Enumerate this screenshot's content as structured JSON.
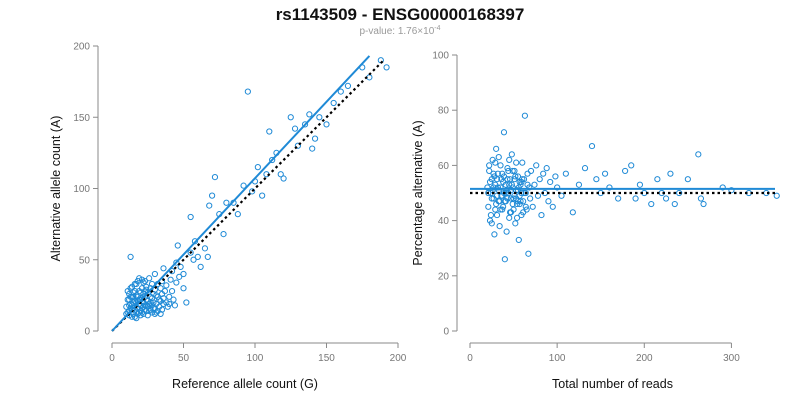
{
  "figure": {
    "title": "rs1143509 - ENSG00000168397",
    "pvalue_prefix": "p-value: 1.76×10",
    "pvalue_exponent": "-4"
  },
  "colors": {
    "points": "#1f8ad6",
    "fit_line": "#1f8ad6",
    "reference_line": "#000000",
    "axis": "#8a8a8a",
    "tick_text": "#777777"
  },
  "chart_data": [
    {
      "type": "scatter",
      "xlabel": "Reference allele count (G)",
      "ylabel": "Alternative allele count (A)",
      "xlim": [
        0,
        200
      ],
      "ylim": [
        0,
        200
      ],
      "xticks": [
        0,
        50,
        100,
        150,
        200
      ],
      "yticks": [
        0,
        50,
        100,
        150,
        200
      ],
      "grid": false,
      "fit_line": {
        "style": "solid",
        "x": [
          0,
          180
        ],
        "y": [
          0,
          193
        ]
      },
      "reference_line": {
        "style": "dotted",
        "x": [
          0,
          190
        ],
        "y": [
          0,
          190
        ]
      },
      "points": [
        [
          13,
          52
        ],
        [
          10,
          17
        ],
        [
          11,
          22
        ],
        [
          12,
          26
        ],
        [
          12,
          14
        ],
        [
          13,
          30
        ],
        [
          14,
          10
        ],
        [
          14,
          18
        ],
        [
          15,
          27
        ],
        [
          15,
          12
        ],
        [
          16,
          21
        ],
        [
          16,
          15
        ],
        [
          17,
          33
        ],
        [
          17,
          9
        ],
        [
          18,
          24
        ],
        [
          18,
          12
        ],
        [
          19,
          19
        ],
        [
          19,
          28
        ],
        [
          20,
          14
        ],
        [
          20,
          22
        ],
        [
          21,
          16
        ],
        [
          21,
          30
        ],
        [
          22,
          12
        ],
        [
          22,
          26
        ],
        [
          23,
          18
        ],
        [
          23,
          35
        ],
        [
          24,
          14
        ],
        [
          24,
          22
        ],
        [
          25,
          27
        ],
        [
          25,
          11
        ],
        [
          26,
          19
        ],
        [
          27,
          24
        ],
        [
          27,
          15
        ],
        [
          28,
          33
        ],
        [
          28,
          13
        ],
        [
          29,
          20
        ],
        [
          30,
          16
        ],
        [
          30,
          40
        ],
        [
          31,
          25
        ],
        [
          32,
          14
        ],
        [
          33,
          22
        ],
        [
          34,
          30
        ],
        [
          35,
          15
        ],
        [
          36,
          44
        ],
        [
          37,
          28
        ],
        [
          38,
          20
        ],
        [
          39,
          17
        ],
        [
          40,
          24
        ],
        [
          41,
          36
        ],
        [
          42,
          42
        ],
        [
          43,
          22
        ],
        [
          44,
          18
        ],
        [
          45,
          34
        ],
        [
          46,
          60
        ],
        [
          47,
          38
        ],
        [
          48,
          45
        ],
        [
          50,
          30
        ],
        [
          52,
          20
        ],
        [
          11,
          13
        ],
        [
          12,
          11
        ],
        [
          13,
          19
        ],
        [
          14,
          24
        ],
        [
          15,
          16
        ],
        [
          16,
          28
        ],
        [
          17,
          20
        ],
        [
          18,
          16
        ],
        [
          19,
          13
        ],
        [
          20,
          18
        ],
        [
          21,
          23
        ],
        [
          22,
          20
        ],
        [
          23,
          15
        ],
        [
          24,
          29
        ],
        [
          25,
          17
        ],
        [
          26,
          14
        ],
        [
          27,
          20
        ],
        [
          28,
          18
        ],
        [
          29,
          26
        ],
        [
          30,
          12
        ],
        [
          31,
          19
        ],
        [
          32,
          24
        ],
        [
          33,
          17
        ],
        [
          34,
          21
        ],
        [
          35,
          26
        ],
        [
          36,
          19
        ],
        [
          12,
          22
        ],
        [
          13,
          16
        ],
        [
          15,
          24
        ],
        [
          17,
          13
        ],
        [
          19,
          22
        ],
        [
          21,
          13
        ],
        [
          23,
          24
        ],
        [
          25,
          21
        ],
        [
          27,
          30
        ],
        [
          29,
          16
        ],
        [
          31,
          13
        ],
        [
          14,
          31
        ],
        [
          16,
          10
        ],
        [
          18,
          35
        ],
        [
          20,
          27
        ],
        [
          22,
          34
        ],
        [
          24,
          31
        ],
        [
          26,
          37
        ],
        [
          28,
          23
        ],
        [
          30,
          29
        ],
        [
          32,
          33
        ],
        [
          34,
          12
        ],
        [
          36,
          23
        ],
        [
          38,
          32
        ],
        [
          40,
          19
        ],
        [
          42,
          28
        ],
        [
          10,
          12
        ],
        [
          11,
          28
        ],
        [
          12,
          18
        ],
        [
          13,
          24
        ],
        [
          14,
          15
        ],
        [
          15,
          20
        ],
        [
          16,
          33
        ],
        [
          17,
          25
        ],
        [
          18,
          21
        ],
        [
          19,
          37
        ],
        [
          20,
          11
        ],
        [
          21,
          36
        ],
        [
          22,
          17
        ],
        [
          23,
          28
        ],
        [
          24,
          18
        ],
        [
          35,
          35
        ],
        [
          45,
          48
        ],
        [
          50,
          40
        ],
        [
          55,
          55
        ],
        [
          55,
          80
        ],
        [
          57,
          50
        ],
        [
          58,
          63
        ],
        [
          60,
          52
        ],
        [
          62,
          45
        ],
        [
          65,
          58
        ],
        [
          67,
          52
        ],
        [
          68,
          88
        ],
        [
          70,
          95
        ],
        [
          72,
          108
        ],
        [
          75,
          82
        ],
        [
          78,
          68
        ],
        [
          80,
          90
        ],
        [
          85,
          90
        ],
        [
          88,
          82
        ],
        [
          92,
          102
        ],
        [
          95,
          168
        ],
        [
          98,
          98
        ],
        [
          100,
          105
        ],
        [
          102,
          115
        ],
        [
          105,
          95
        ],
        [
          108,
          110
        ],
        [
          110,
          140
        ],
        [
          112,
          120
        ],
        [
          115,
          125
        ],
        [
          118,
          110
        ],
        [
          120,
          107
        ],
        [
          125,
          150
        ],
        [
          128,
          142
        ],
        [
          130,
          130
        ],
        [
          135,
          145
        ],
        [
          138,
          152
        ],
        [
          140,
          128
        ],
        [
          142,
          135
        ],
        [
          145,
          150
        ],
        [
          150,
          145
        ],
        [
          155,
          160
        ],
        [
          160,
          168
        ],
        [
          165,
          172
        ],
        [
          175,
          185
        ],
        [
          180,
          178
        ],
        [
          188,
          190
        ],
        [
          192,
          185
        ]
      ]
    },
    {
      "type": "scatter",
      "xlabel": "Total number of reads",
      "ylabel": "Percentage alternative (A)",
      "xlim": [
        0,
        350
      ],
      "ylim": [
        0,
        100
      ],
      "xticks": [
        0,
        100,
        200,
        300
      ],
      "yticks": [
        0,
        20,
        40,
        60,
        80,
        100
      ],
      "grid": false,
      "fit_line": {
        "style": "solid",
        "x": [
          0,
          350
        ],
        "y": [
          51.5,
          51.5
        ]
      },
      "reference_line": {
        "style": "dotted",
        "x": [
          0,
          350
        ],
        "y": [
          50,
          50
        ]
      },
      "points": [
        [
          20,
          52
        ],
        [
          21,
          45
        ],
        [
          22,
          58
        ],
        [
          23,
          40
        ],
        [
          24,
          50
        ],
        [
          25,
          55
        ],
        [
          26,
          62
        ],
        [
          27,
          48
        ],
        [
          28,
          35
        ],
        [
          29,
          53
        ],
        [
          30,
          46
        ],
        [
          30,
          66
        ],
        [
          31,
          42
        ],
        [
          32,
          57
        ],
        [
          33,
          51
        ],
        [
          34,
          38
        ],
        [
          35,
          60
        ],
        [
          36,
          49
        ],
        [
          37,
          44
        ],
        [
          38,
          54
        ],
        [
          39,
          72
        ],
        [
          40,
          47
        ],
        [
          40,
          26
        ],
        [
          41,
          53
        ],
        [
          42,
          36
        ],
        [
          43,
          59
        ],
        [
          44,
          50
        ],
        [
          45,
          41
        ],
        [
          46,
          55
        ],
        [
          47,
          48
        ],
        [
          48,
          64
        ],
        [
          49,
          52
        ],
        [
          50,
          44
        ],
        [
          51,
          58
        ],
        [
          52,
          39
        ],
        [
          53,
          51
        ],
        [
          54,
          46
        ],
        [
          55,
          56
        ],
        [
          56,
          33
        ],
        [
          57,
          49
        ],
        [
          58,
          53
        ],
        [
          59,
          42
        ],
        [
          60,
          61
        ],
        [
          61,
          47
        ],
        [
          62,
          55
        ],
        [
          63,
          78
        ],
        [
          64,
          50
        ],
        [
          65,
          44
        ],
        [
          66,
          57
        ],
        [
          67,
          28
        ],
        [
          68,
          52
        ],
        [
          69,
          48
        ],
        [
          70,
          58
        ],
        [
          72,
          45
        ],
        [
          74,
          53
        ],
        [
          76,
          60
        ],
        [
          78,
          49
        ],
        [
          80,
          55
        ],
        [
          82,
          42
        ],
        [
          84,
          57
        ],
        [
          86,
          50
        ],
        [
          88,
          59
        ],
        [
          90,
          47
        ],
        [
          92,
          54
        ],
        [
          95,
          45
        ],
        [
          98,
          56
        ],
        [
          100,
          52
        ],
        [
          105,
          49
        ],
        [
          110,
          57
        ],
        [
          118,
          43
        ],
        [
          125,
          53
        ],
        [
          132,
          59
        ],
        [
          140,
          67
        ],
        [
          145,
          55
        ],
        [
          150,
          50
        ],
        [
          155,
          57
        ],
        [
          160,
          52
        ],
        [
          170,
          48
        ],
        [
          178,
          58
        ],
        [
          185,
          60
        ],
        [
          190,
          48
        ],
        [
          195,
          53
        ],
        [
          200,
          50
        ],
        [
          208,
          46
        ],
        [
          215,
          55
        ],
        [
          220,
          50
        ],
        [
          225,
          48
        ],
        [
          230,
          57
        ],
        [
          235,
          46
        ],
        [
          240,
          50
        ],
        [
          250,
          55
        ],
        [
          262,
          64
        ],
        [
          265,
          48
        ],
        [
          268,
          46
        ],
        [
          290,
          52
        ],
        [
          300,
          51
        ],
        [
          320,
          50
        ],
        [
          340,
          50
        ],
        [
          352,
          49
        ],
        [
          22,
          60
        ],
        [
          24,
          42
        ],
        [
          26,
          51
        ],
        [
          28,
          56
        ],
        [
          31,
          49
        ],
        [
          33,
          63
        ],
        [
          35,
          44
        ],
        [
          37,
          57
        ],
        [
          39,
          50
        ],
        [
          41,
          47
        ],
        [
          43,
          55
        ],
        [
          45,
          62
        ],
        [
          47,
          43
        ],
        [
          49,
          58
        ],
        [
          51,
          49
        ],
        [
          53,
          61
        ],
        [
          55,
          47
        ],
        [
          57,
          54
        ],
        [
          59,
          50
        ],
        [
          61,
          43
        ],
        [
          25,
          48
        ],
        [
          27,
          57
        ],
        [
          29,
          44
        ],
        [
          32,
          52
        ],
        [
          34,
          47
        ],
        [
          36,
          55
        ],
        [
          38,
          45
        ],
        [
          42,
          51
        ],
        [
          44,
          58
        ],
        [
          46,
          43
        ],
        [
          48,
          53
        ],
        [
          50,
          48
        ],
        [
          52,
          56
        ],
        [
          54,
          41
        ],
        [
          56,
          52
        ],
        [
          58,
          47
        ],
        [
          60,
          55
        ],
        [
          62,
          50
        ],
        [
          64,
          45
        ],
        [
          66,
          53
        ],
        [
          21,
          50
        ],
        [
          23,
          54
        ],
        [
          25,
          39
        ],
        [
          27,
          52
        ],
        [
          29,
          61
        ],
        [
          31,
          55
        ],
        [
          33,
          47
        ],
        [
          35,
          52
        ],
        [
          37,
          49
        ],
        [
          39,
          56
        ],
        [
          41,
          50
        ],
        [
          43,
          48
        ],
        [
          45,
          53
        ],
        [
          47,
          51
        ],
        [
          49,
          46
        ],
        [
          51,
          55
        ],
        [
          53,
          48
        ],
        [
          55,
          51
        ],
        [
          57,
          46
        ],
        [
          59,
          54
        ]
      ]
    }
  ]
}
